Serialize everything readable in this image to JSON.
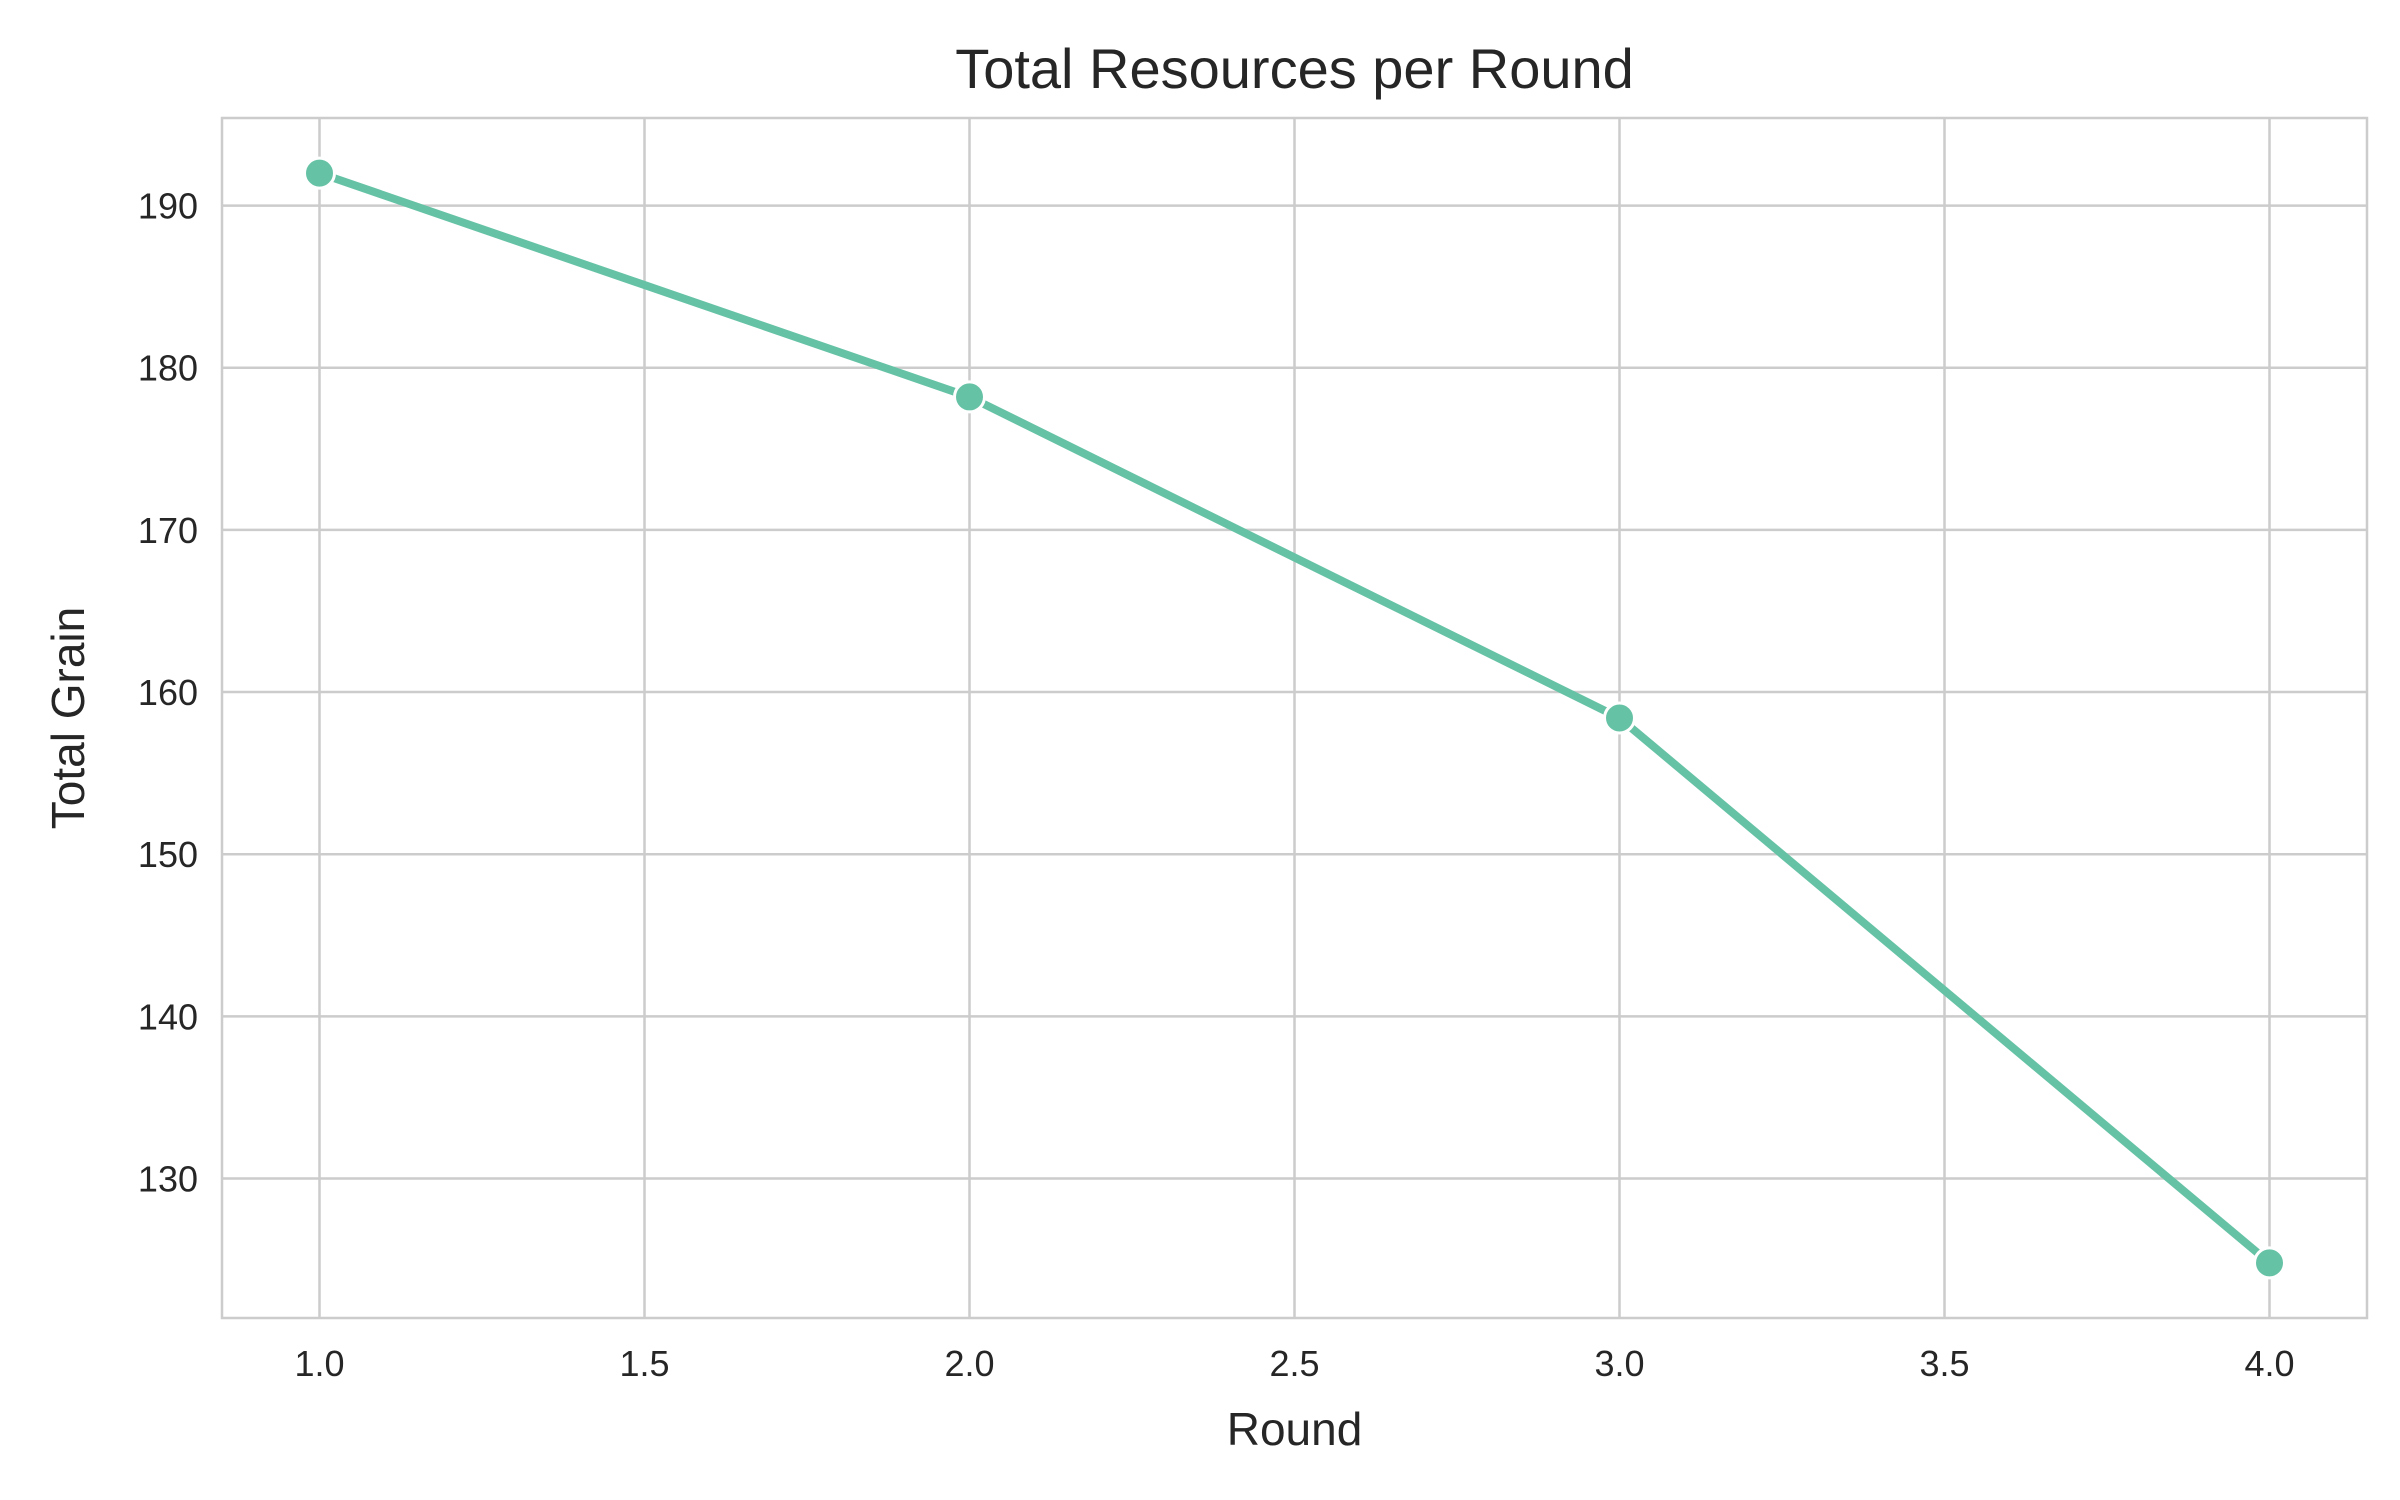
{
  "chart_data": {
    "type": "line",
    "title": "Total Resources per Round",
    "xlabel": "Round",
    "ylabel": "Total Grain",
    "x": [
      1.0,
      2.0,
      3.0,
      4.0
    ],
    "series": [
      {
        "values": [
          192.0,
          178.2,
          158.4,
          124.8
        ],
        "color": "#66c2a5"
      }
    ],
    "xlim": [
      0.85,
      4.15
    ],
    "ylim": [
      121.4,
      195.4
    ],
    "xticks": [
      1.0,
      1.5,
      2.0,
      2.5,
      3.0,
      3.5,
      4.0
    ],
    "xtick_labels": [
      "1.0",
      "1.5",
      "2.0",
      "2.5",
      "3.0",
      "3.5",
      "4.0"
    ],
    "yticks": [
      130,
      140,
      150,
      160,
      170,
      180,
      190
    ],
    "ytick_labels": [
      "130",
      "140",
      "150",
      "160",
      "170",
      "180",
      "190"
    ],
    "grid": true,
    "legend": "none",
    "colors": {
      "grid": "#cccccc",
      "spine": "#cccccc",
      "text": "#262626",
      "marker_edge": "#ffffff"
    }
  }
}
